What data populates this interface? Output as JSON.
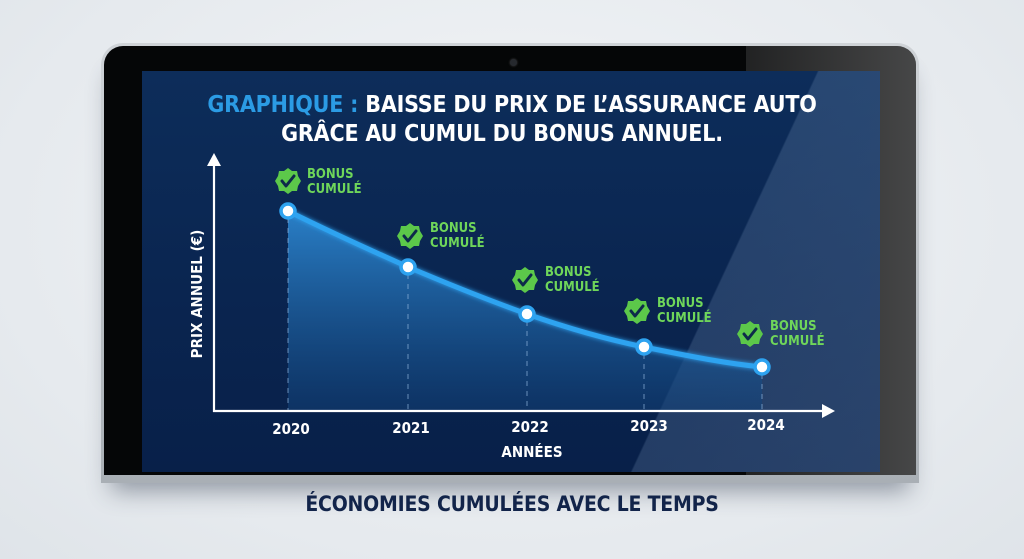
{
  "title": {
    "prefix": "GRAPHIQUE :",
    "line1_rest": "BAISSE DU PRIX DE L’ASSURANCE AUTO",
    "line2": "GRÂCE AU CUMUL DU BONUS ANNUEL."
  },
  "caption": "ÉCONOMIES CUMULÉES AVEC LE TEMPS",
  "colors": {
    "screen_bg": "#0b2a55",
    "title_accent": "#2b9be4",
    "line": "#2ea3f0",
    "badge_green": "#5cc84a",
    "badge_text": "#6fd65a",
    "caption": "#12244a",
    "page_bg": "#e9edf1"
  },
  "chart_data": {
    "type": "line",
    "title": "GRAPHIQUE : BAISSE DU PRIX DE L’ASSURANCE AUTO GRÂCE AU CUMUL DU BONUS ANNUEL.",
    "subtitle": "ÉCONOMIES CUMULÉES AVEC LE TEMPS",
    "xlabel": "ANNÉES",
    "ylabel": "PRIX ANNUEL (€)",
    "categories": [
      "2020",
      "2021",
      "2022",
      "2023",
      "2024"
    ],
    "values": [
      100,
      72,
      49,
      32,
      22
    ],
    "values_note": "relative values estimated from pixel heights; no y tick labels shown",
    "series": [
      {
        "name": "Prix annuel",
        "values": [
          100,
          72,
          49,
          32,
          22
        ]
      }
    ],
    "annotations": [
      {
        "x": "2020",
        "text": "BONUS CUMULÉ"
      },
      {
        "x": "2021",
        "text": "BONUS CUMULÉ"
      },
      {
        "x": "2022",
        "text": "BONUS CUMULÉ"
      },
      {
        "x": "2023",
        "text": "BONUS CUMULÉ"
      },
      {
        "x": "2024",
        "text": "BONUS CUMULÉ"
      }
    ],
    "grid": false,
    "legend": "none",
    "area_fill": true
  },
  "badge": {
    "line1": "BONUS",
    "line2": "CUMULÉ"
  }
}
